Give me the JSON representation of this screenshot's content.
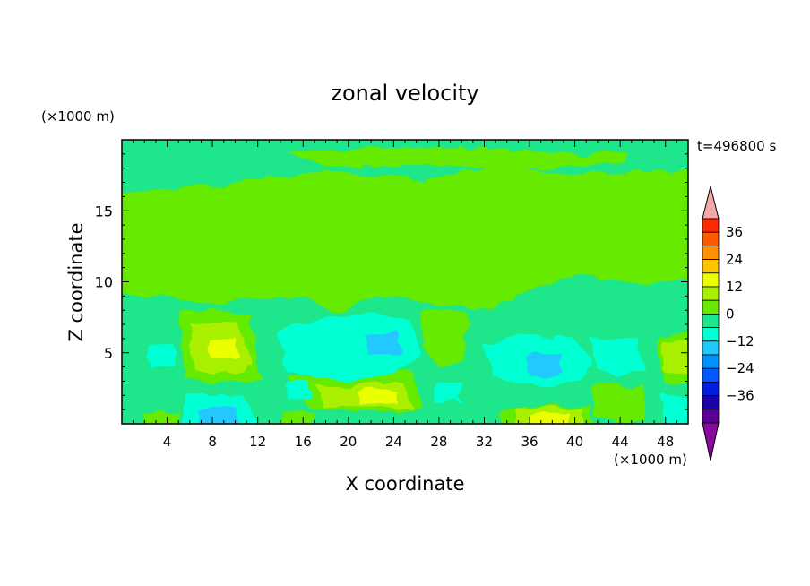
{
  "chart_data": {
    "type": "heatmap",
    "title": "zonal velocity",
    "xlabel": "X coordinate",
    "ylabel": "Z coordinate",
    "x_unit": "(×1000 m)",
    "y_unit": "(×1000 m)",
    "time_label": "t=496800 s",
    "xlim": [
      0,
      50
    ],
    "ylim": [
      0,
      20
    ],
    "x_ticks": [
      "4",
      "8",
      "12",
      "16",
      "20",
      "24",
      "28",
      "32",
      "36",
      "40",
      "44",
      "48"
    ],
    "y_ticks": [
      "5",
      "10",
      "15"
    ],
    "colorbar": {
      "tick_labels": [
        "36",
        "24",
        "12",
        "0",
        "−12",
        "−24",
        "−36"
      ],
      "levels": [
        42,
        36,
        30,
        24,
        18,
        12,
        6,
        0,
        -6,
        -12,
        -18,
        -24,
        -30,
        -36,
        -42
      ],
      "colors": [
        "#ff2a00",
        "#ff5a00",
        "#ff9000",
        "#ffc400",
        "#ecff00",
        "#a8f000",
        "#66ea00",
        "#1ee68a",
        "#00ffd2",
        "#20c8ff",
        "#0092ff",
        "#0058ff",
        "#0020e0",
        "#1c00a8",
        "#5a0096"
      ],
      "over_color": "#f4a8a8",
      "under_color": "#8a0aa0"
    },
    "field_levels": [
      {
        "level": 0,
        "color": "#1ee68a"
      },
      {
        "level": 6,
        "color": "#66ea00"
      },
      {
        "level": 12,
        "color": "#a8f000"
      },
      {
        "level": 18,
        "color": "#ecff00"
      },
      {
        "level": -6,
        "color": "#00ffd2"
      },
      {
        "level": -12,
        "color": "#20c8ff"
      }
    ]
  }
}
